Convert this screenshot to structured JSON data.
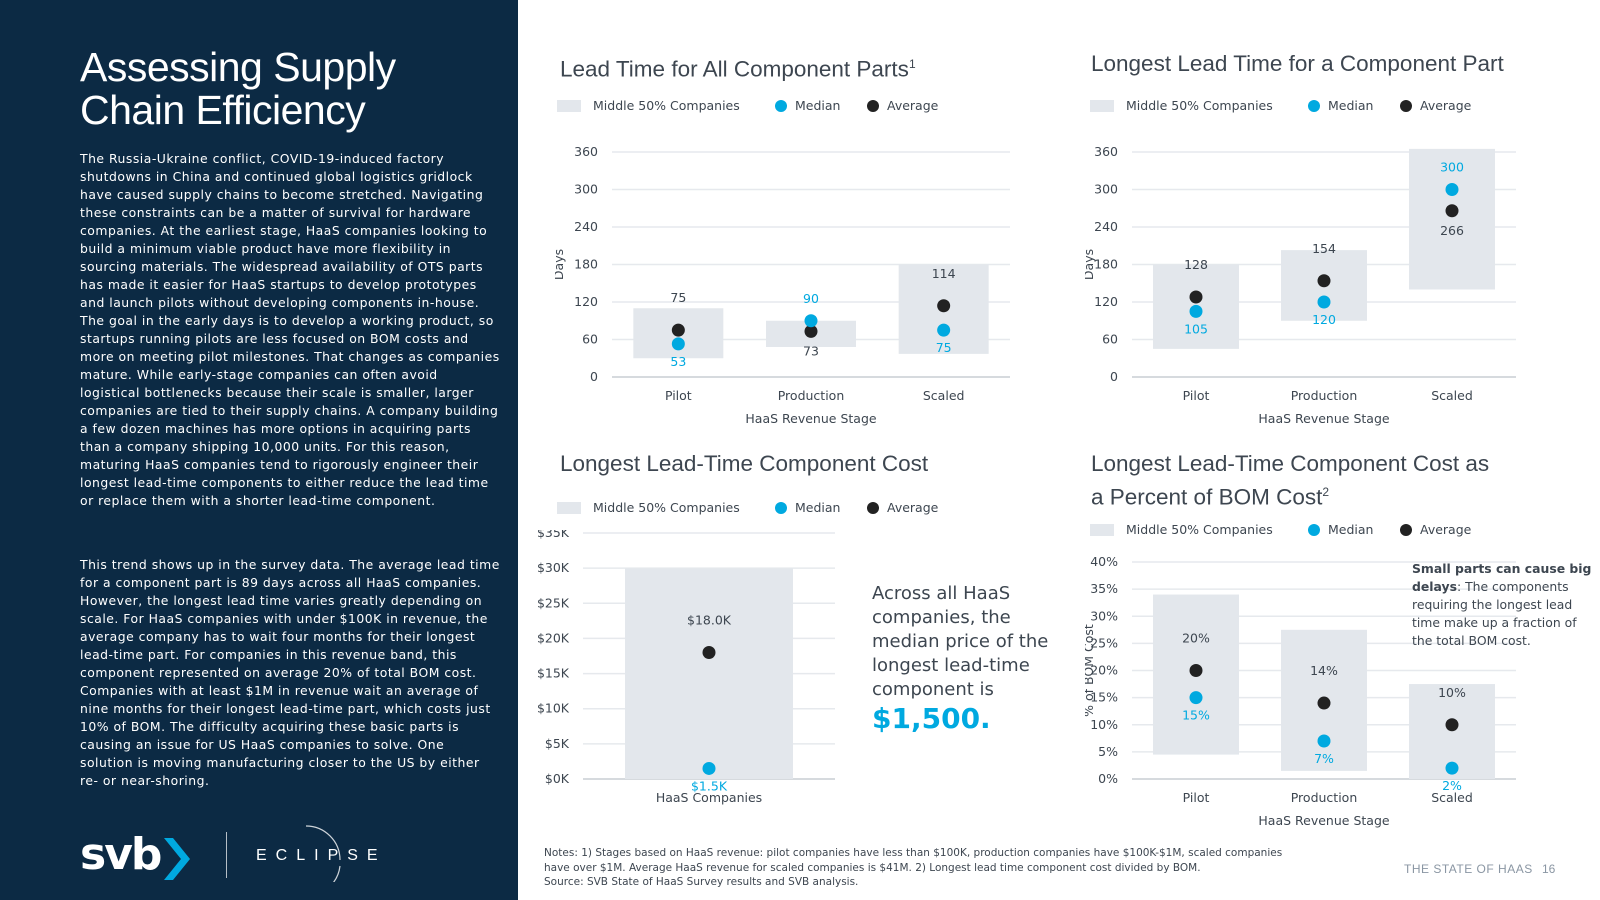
{
  "left_panel": {
    "title": "Assessing Supply Chain Efficiency",
    "paragraph1": "The Russia-Ukraine conflict, COVID-19-induced factory shutdowns in China and continued global logistics gridlock have caused supply chains to become stretched. Navigating these constraints can be a matter of survival for hardware companies. At the earliest stage, HaaS companies looking to build a minimum viable product have more flexibility in sourcing materials. The widespread availability of OTS parts has made it easier for HaaS startups to develop prototypes and launch pilots without developing components in-house. The goal in the early days is to develop a working product, so startups running pilots are less focused on BOM costs and more on meeting pilot milestones. That changes as companies mature. While early-stage companies can often avoid logistical bottlenecks because their scale is smaller, larger companies are tied to their supply chains. A company building a few dozen machines has more options in acquiring parts than a company shipping 10,000 units. For this reason, maturing HaaS companies tend to rigorously engineer their longest lead-time components to either reduce the lead time or replace them with a shorter lead-time component.",
    "paragraph2": "This trend shows up in the survey data. The average lead time for a component part is 89 days across all HaaS companies. However, the longest lead time varies greatly depending on scale. For HaaS companies with under $100K in revenue, the average company has to wait four months for their longest lead-time part. For companies in this revenue band, this component represented on average 20% of total BOM cost. Companies with at least $1M in revenue wait an average of nine months for their longest lead-time part, which costs just 10% of BOM. The difficulty acquiring these basic parts is causing an issue for US HaaS companies to solve. One solution is moving manufacturing closer to the US by either re- or near-shoring.",
    "logo_svb": "svb",
    "logo_eclipse": "ECLIPSE"
  },
  "legend": {
    "range_label": "Middle 50% Companies",
    "median_label": "Median",
    "average_label": "Average"
  },
  "colors": {
    "panel": "#0c2a44",
    "range": "#e3e7ec",
    "median": "#00a9e0",
    "average": "#222222",
    "text": "#3d4650"
  },
  "chart_data": [
    {
      "id": "c1",
      "type": "range-dot",
      "title": "Lead Time for All Component Parts",
      "title_sup": "1",
      "xlabel": "HaaS Revenue Stage",
      "ylabel": "Days",
      "ylim": [
        0,
        360
      ],
      "yticks": [
        0,
        60,
        120,
        180,
        240,
        300,
        360
      ],
      "ytick_labels": [
        "0",
        "60",
        "120",
        "180",
        "240",
        "300",
        "360"
      ],
      "categories": [
        "Pilot",
        "Production",
        "Scaled"
      ],
      "range_low": [
        30,
        48,
        37
      ],
      "range_high": [
        110,
        90,
        180
      ],
      "median": [
        53,
        90,
        75
      ],
      "average": [
        75,
        73,
        114
      ],
      "median_labels": [
        "53",
        "90",
        "75"
      ],
      "average_labels": [
        "75",
        "73",
        "114"
      ]
    },
    {
      "id": "c2",
      "type": "range-dot",
      "title": "Longest Lead Time for a Component Part",
      "xlabel": "HaaS Revenue Stage",
      "ylabel": "Days",
      "ylim": [
        0,
        360
      ],
      "yticks": [
        0,
        60,
        120,
        180,
        240,
        300,
        360
      ],
      "ytick_labels": [
        "0",
        "60",
        "120",
        "180",
        "240",
        "300",
        "360"
      ],
      "categories": [
        "Pilot",
        "Production",
        "Scaled"
      ],
      "range_low": [
        45,
        90,
        140
      ],
      "range_high": [
        180,
        203,
        365
      ],
      "median": [
        105,
        120,
        300
      ],
      "average": [
        128,
        154,
        266
      ],
      "median_labels": [
        "105",
        "120",
        "300"
      ],
      "average_labels": [
        "128",
        "154",
        "266"
      ]
    },
    {
      "id": "c3",
      "type": "range-dot",
      "title": "Longest Lead-Time Component Cost",
      "xlabel": "",
      "ylabel": "",
      "ylim": [
        0,
        35000
      ],
      "yticks": [
        0,
        5000,
        10000,
        15000,
        20000,
        25000,
        30000,
        35000
      ],
      "ytick_labels": [
        "$0K",
        "$5K",
        "$10K",
        "$15K",
        "$20K",
        "$25K",
        "$30K",
        "$35K"
      ],
      "categories": [
        "HaaS Companies"
      ],
      "range_low": [
        0
      ],
      "range_high": [
        30000
      ],
      "median": [
        1500
      ],
      "average": [
        18000
      ],
      "median_labels": [
        "$1.5K"
      ],
      "average_labels": [
        "$18.0K"
      ]
    },
    {
      "id": "c4",
      "type": "range-dot",
      "title": "Longest Lead-Time Component Cost as a Percent of BOM Cost",
      "title_sup": "2",
      "xlabel": "HaaS Revenue Stage",
      "ylabel": "% of BOM Cost",
      "ylim": [
        0,
        40
      ],
      "yticks": [
        0,
        5,
        10,
        15,
        20,
        25,
        30,
        35,
        40
      ],
      "ytick_labels": [
        "0%",
        "5%",
        "10%",
        "15%",
        "20%",
        "25%",
        "30%",
        "35%",
        "40%"
      ],
      "categories": [
        "Pilot",
        "Production",
        "Scaled"
      ],
      "range_low": [
        4.5,
        1.5,
        0
      ],
      "range_high": [
        34,
        27.5,
        17.5
      ],
      "median": [
        15,
        7,
        2
      ],
      "average": [
        20,
        14,
        10
      ],
      "median_labels": [
        "15%",
        "7%",
        "2%"
      ],
      "average_labels": [
        "20%",
        "14%",
        "10%"
      ]
    }
  ],
  "callout": {
    "text": "Across all HaaS companies, the median price of the longest lead-time component is",
    "value": "$1,500."
  },
  "sidenote": {
    "bold": "Small parts can cause big delays",
    "text": ": The components requiring the longest lead time make up a fraction of the total BOM cost."
  },
  "notes": {
    "line1": "Notes: 1) Stages based on HaaS revenue: pilot companies have less than $100K, production companies have $100K-$1M, scaled companies have over $1M. Average HaaS revenue for scaled companies is $41M.  2) Longest lead time component cost divided by BOM.",
    "line2": "Source: SVB State of HaaS Survey results and SVB analysis."
  },
  "footer": {
    "title": "THE STATE OF HAAS",
    "page": "16"
  }
}
